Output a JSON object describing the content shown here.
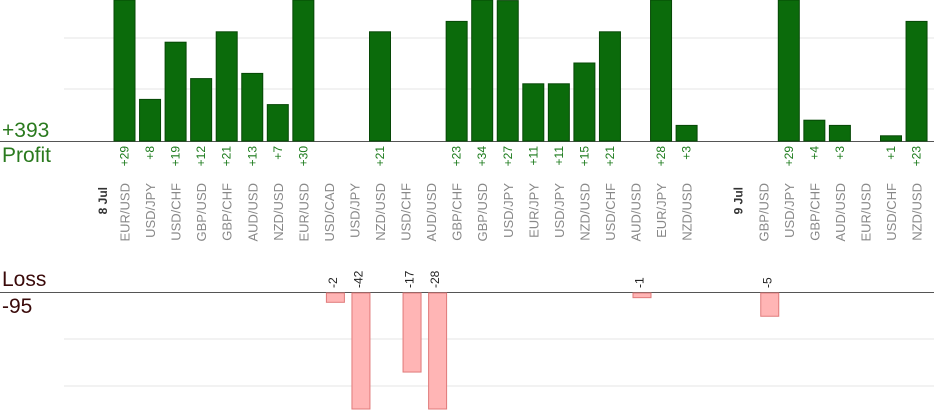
{
  "profit": {
    "total_label": "+393",
    "label": "Profit",
    "color": "#2a7a1e"
  },
  "loss": {
    "label": "Loss",
    "total_label": "-95",
    "color": "#3a0a0a"
  },
  "chart_data": {
    "type": "bar",
    "categories": [
      {
        "pair": "EUR/USD",
        "day": "8 Jul",
        "profit": 29,
        "loss": 0
      },
      {
        "pair": "USD/JPY",
        "day": "",
        "profit": 8,
        "loss": 0
      },
      {
        "pair": "USD/CHF",
        "day": "",
        "profit": 19,
        "loss": 0
      },
      {
        "pair": "GBP/USD",
        "day": "",
        "profit": 12,
        "loss": 0
      },
      {
        "pair": "GBP/CHF",
        "day": "",
        "profit": 21,
        "loss": 0
      },
      {
        "pair": "AUD/USD",
        "day": "",
        "profit": 13,
        "loss": 0
      },
      {
        "pair": "NZD/USD",
        "day": "",
        "profit": 7,
        "loss": 0
      },
      {
        "pair": "EUR/USD",
        "day": "",
        "profit": 30,
        "loss": 0
      },
      {
        "pair": "USD/CAD",
        "day": "",
        "profit": 0,
        "loss": -2
      },
      {
        "pair": "USD/JPY",
        "day": "",
        "profit": 0,
        "loss": -42
      },
      {
        "pair": "NZD/USD",
        "day": "",
        "profit": 21,
        "loss": 0
      },
      {
        "pair": "USD/CHF",
        "day": "",
        "profit": 0,
        "loss": -17
      },
      {
        "pair": "AUD/USD",
        "day": "",
        "profit": 0,
        "loss": -28
      },
      {
        "pair": "GBP/CHF",
        "day": "",
        "profit": 23,
        "loss": 0
      },
      {
        "pair": "GBP/USD",
        "day": "",
        "profit": 34,
        "loss": 0
      },
      {
        "pair": "USD/JPY",
        "day": "",
        "profit": 27,
        "loss": 0
      },
      {
        "pair": "EUR/JPY",
        "day": "",
        "profit": 11,
        "loss": 0
      },
      {
        "pair": "USD/JPY",
        "day": "",
        "profit": 11,
        "loss": 0
      },
      {
        "pair": "NZD/USD",
        "day": "",
        "profit": 15,
        "loss": 0
      },
      {
        "pair": "USD/CHF",
        "day": "",
        "profit": 21,
        "loss": 0
      },
      {
        "pair": "AUD/USD",
        "day": "",
        "profit": 0,
        "loss": -1
      },
      {
        "pair": "EUR/JPY",
        "day": "",
        "profit": 28,
        "loss": 0
      },
      {
        "pair": "NZD/USD",
        "day": "",
        "profit": 3,
        "loss": 0
      },
      {
        "pair": "",
        "day": "",
        "profit": 0,
        "loss": 0
      },
      {
        "pair": "",
        "day": "9 Jul",
        "profit": 0,
        "loss": 0
      },
      {
        "pair": "GBP/USD",
        "day": "",
        "profit": 0,
        "loss": -5
      },
      {
        "pair": "USD/JPY",
        "day": "",
        "profit": 29,
        "loss": 0
      },
      {
        "pair": "GBP/CHF",
        "day": "",
        "profit": 4,
        "loss": 0
      },
      {
        "pair": "AUD/USD",
        "day": "",
        "profit": 3,
        "loss": 0
      },
      {
        "pair": "EUR/USD",
        "day": "",
        "profit": 0,
        "loss": 0
      },
      {
        "pair": "USD/CHF",
        "day": "",
        "profit": 1,
        "loss": 0
      },
      {
        "pair": "NZD/USD",
        "day": "",
        "profit": 23,
        "loss": 0
      }
    ],
    "profit_ylim": [
      0,
      30
    ],
    "loss_ylim": [
      -25,
      0
    ],
    "grid": true,
    "colors": {
      "profit_bar": "#0b6b0b",
      "profit_bar_edge": "#064806",
      "profit_value": "#1a7a1a",
      "loss_bar": "#ffb5b5",
      "loss_bar_edge": "#e07a7a",
      "loss_value": "#222222",
      "pair_text": "#888888",
      "day_text": "#333333",
      "grid": "#e6e6e6",
      "axis": "#555555"
    }
  }
}
